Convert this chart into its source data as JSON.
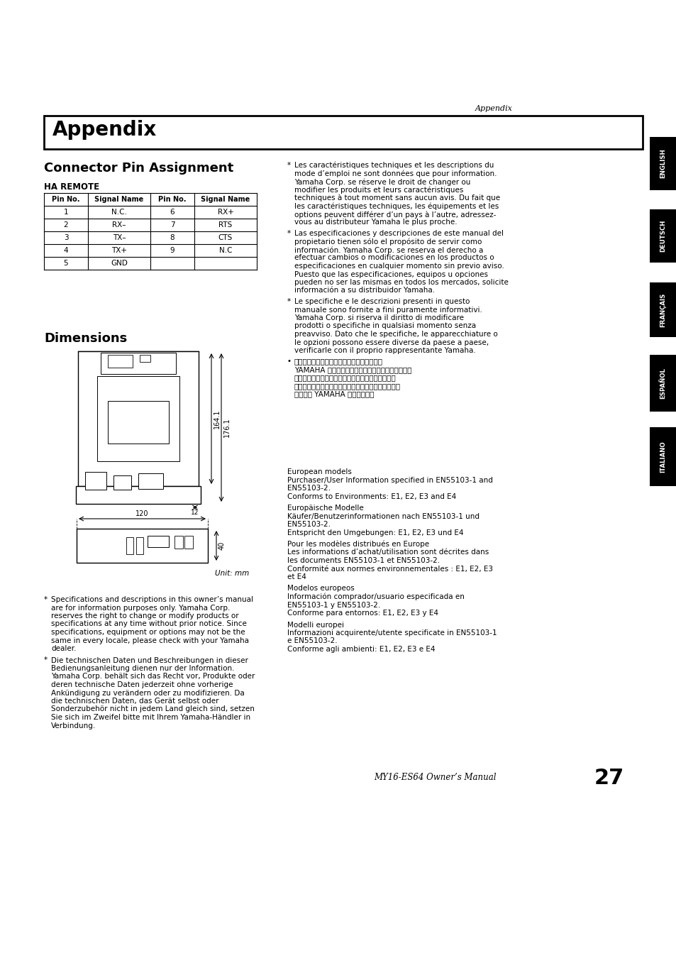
{
  "page_bg": "#ffffff",
  "header_italic": "Appendix",
  "section_title": "Appendix",
  "subsection1": "Connector Pin Assignment",
  "ha_remote_label": "HA REMOTE",
  "table_headers": [
    "Pin No.",
    "Signal Name",
    "Pin No.",
    "Signal Name"
  ],
  "table_rows": [
    [
      "1",
      "N.C.",
      "6",
      "RX+"
    ],
    [
      "2",
      "RX–",
      "7",
      "RTS"
    ],
    [
      "3",
      "TX–",
      "8",
      "CTS"
    ],
    [
      "4",
      "TX+",
      "9",
      "N.C"
    ],
    [
      "5",
      "GND",
      "",
      ""
    ]
  ],
  "subsection2": "Dimensions",
  "dim_label1": "164.1",
  "dim_label2": "176.1",
  "dim_label3": "12",
  "dim_label4": "120",
  "dim_label5": "40",
  "unit_label": "Unit: mm",
  "right_col_text1": "* Les caractéristiques techniques et les descriptions du\nmode d’emploi ne sont données que pour information.\nYamaha Corp. se réserve le droit de changer ou\nmodifier les produits et leurs caractéristiques\ntechniques à tout moment sans aucun avis. Du fait que\nles caractéristiques techniques, les équipements et les\noptions peuvent différer d’un pays à l’autre, adressez-\nvous au distributeur Yamaha le plus proche.",
  "right_col_text2": "* Las especificaciones y descripciones de este manual del\npropietario tienen sólo el propósito de servir como\ninformación. Yamaha Corp. se reserva el derecho a\nefectuar cambios o modificaciones en los productos o\nespecificaciones en cualquier momento sin previo aviso.\nPuesto que las especificaciones, equipos u opciones\npueden no ser las mismas en todos los mercados, solicite\ninformación a su distribuidor Yamaha.",
  "right_col_text3": "* Le specifiche e le descrizioni presenti in questo\nmanuale sono fornite a fini puramente informativi.\nYamaha Corp. si riserva il diritto di modificare\nprodotti o specifiche in qualsiasi momento senza\npreavviso. Dato che le specifiche, le apparecchiature o\nle opzioni possono essere diverse da paese a paese,\nverificarle con il proprio rappresentante Yamaha.",
  "right_col_text4": "• 本使用说明书中的技术规格及介绍仅供参考。\nYAMAHA 公司保留随时更改或修订产品或技术规格的\n权利。若有更改，恕不事先通知。技术规格、设备或\n选购件在各个地区可能均会有所不同，因此如有问题，\n请和当地 YAMAHA 经销商确认。",
  "left_note1": "* Specifications and descriptions in this owner’s manual\nare for information purposes only. Yamaha Corp.\nreserves the right to change or modify products or\nspecifications at any time without prior notice. Since\nspecifications, equipment or options may not be the\nsame in every locale, please check with your Yamaha\ndealer.",
  "left_note2": "* Die technischen Daten und Beschreibungen in dieser\nBedienungsanleitung dienen nur der Information.\nYamaha Corp. behält sich das Recht vor, Produkte oder\nderen technische Daten jederzeit ohne vorherige\nAnkündigung zu verändern oder zu modifizieren. Da\ndie technischen Daten, das Gerät selbst oder\nSonderzubehör nicht in jedem Land gleich sind, setzen\nSie sich im Zweifel bitte mit Ihrem Yamaha-Händler in\nVerbindung.",
  "right_note1": "European models\nPurchaser/User Information specified in EN55103-1 and\nEN55103-2.\nConforms to Environments: E1, E2, E3 and E4",
  "right_note2": "Europäische Modelle\nKäufer/Benutzerinformationen nach EN55103-1 und\nEN55103-2.\nEntspricht den Umgebungen: E1, E2, E3 und E4",
  "right_note3": "Pour les modèles distribués en Europe\nLes informations d’achat/utilisation sont décrites dans\nles documents EN55103-1 et EN55103-2.\nConformité aux normes environnementales : E1, E2, E3\net E4",
  "right_note4": "Modelos europeos\nInformación comprador/usuario especificada en\nEN55103-1 y EN55103-2.\nConforme para entornos: E1, E2, E3 y E4",
  "right_note5": "Modelli europei\nInformazioni acquirente/utente specificate in EN55103-1\ne EN55103-2.\nConforme agli ambienti: E1, E2, E3 e E4",
  "footer_text": "MY16-ES64 Owner’s Manual",
  "footer_page": "27",
  "tab_labels": [
    "ENGLISH",
    "DEUTSCH",
    "FRANÇAIS",
    "ESPAÑOL",
    "ITALIANO"
  ]
}
